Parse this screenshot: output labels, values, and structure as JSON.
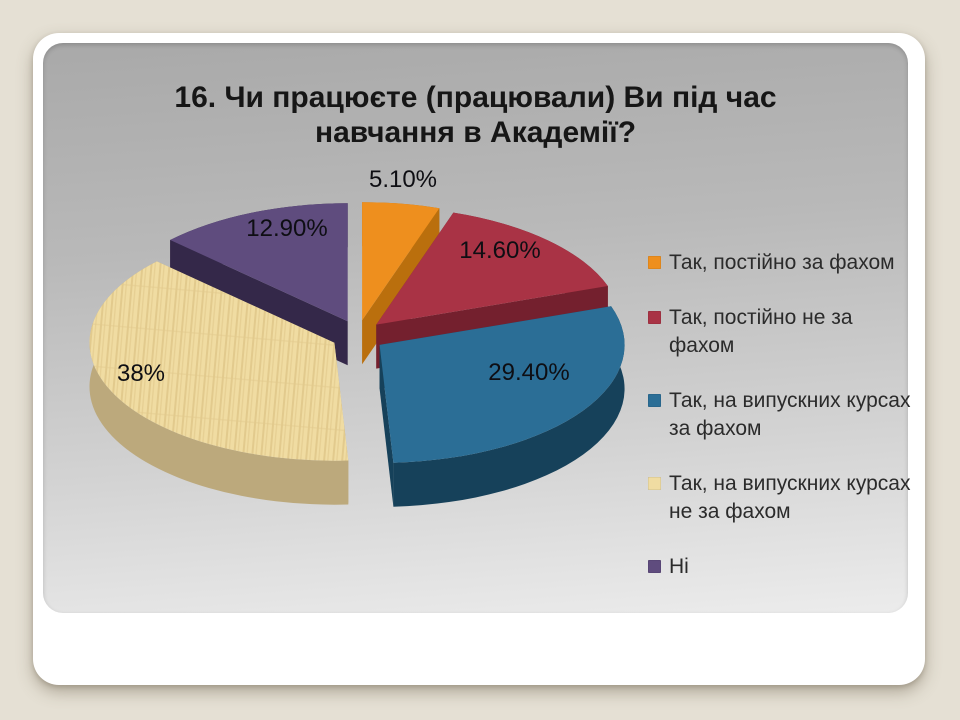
{
  "slide": {
    "title": "16. Чи працюєте (працювали) Ви під час навчання в Академії?"
  },
  "theme": {
    "page_background": "#E5E0D4",
    "card_background": "#FFFFFF",
    "panel_gradient_top": "#A9A9A9",
    "panel_gradient_bottom": "#ECECEC",
    "title_color": "#161616",
    "data_label_color": "#0E0E13",
    "legend_text_color": "#2B2B2B"
  },
  "chart_data": {
    "type": "pie",
    "style": "3d-exploded",
    "title": "16. Чи працюєте (працювали) Ви під час навчання в Академії?",
    "unit": "percent",
    "start_angle_deg": 0,
    "direction": "clockwise",
    "legend_position": "right",
    "slices": [
      {
        "label": "Так, постійно за фахом",
        "value": 5.1,
        "display": "5.10%",
        "color": "#EE8F1E",
        "side_color": "#BA6F0D"
      },
      {
        "label": "Так, постійно не за фахом",
        "value": 14.6,
        "display": "14.60%",
        "color": "#A93345",
        "side_color": "#74202E"
      },
      {
        "label": "Так, на випускних курсах за фахом",
        "value": 29.4,
        "display": "29.40%",
        "color": "#2B6E96",
        "side_color": "#16415A"
      },
      {
        "label": "Так, на випускних курсах не за фахом",
        "value": 38,
        "display": "38%",
        "color": "#F0DCA2",
        "side_color": "#BCA97C",
        "grain_color": "#E2CA8D",
        "texture": "wood"
      },
      {
        "label": "Ні",
        "value": 12.9,
        "display": "12.90%",
        "color": "#5F4C7E",
        "side_color": "#342849"
      }
    ]
  }
}
